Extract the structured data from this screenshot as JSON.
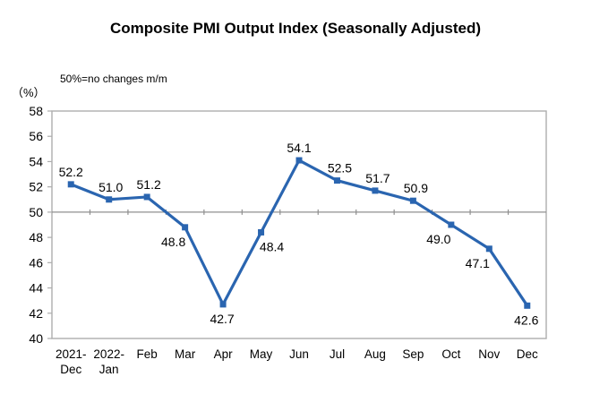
{
  "chart_data": {
    "type": "line",
    "title": "Composite PMI Output Index (Seasonally Adjusted)",
    "subtitle": "50%=no changes m/m",
    "unit_label": "（%）",
    "categories": [
      "2021-\nDec",
      "2022-\nJan",
      "Feb",
      "Mar",
      "Apr",
      "May",
      "Jun",
      "Jul",
      "Aug",
      "Sep",
      "Oct",
      "Nov",
      "Dec"
    ],
    "values": [
      52.2,
      51.0,
      51.2,
      48.8,
      42.7,
      48.4,
      54.1,
      52.5,
      51.7,
      50.9,
      49.0,
      47.1,
      42.6
    ],
    "ylim": [
      40,
      58
    ],
    "ytick_step": 2,
    "reference_line": 50,
    "grid": "off",
    "legend": "none",
    "colors": {
      "line": "#2A65B0",
      "marker": "#2A65B0",
      "plot_border": "#ADADAD",
      "reference_line": "#8F8F8F",
      "text": "#000000"
    },
    "label_position": [
      "above",
      "above",
      "above",
      "below",
      "below",
      "below",
      "above",
      "above",
      "above",
      "above",
      "below",
      "below",
      "below"
    ],
    "label_dx": [
      0,
      2,
      2,
      -13,
      -1,
      12,
      0,
      3,
      3,
      3,
      -14,
      -13,
      -1
    ]
  }
}
